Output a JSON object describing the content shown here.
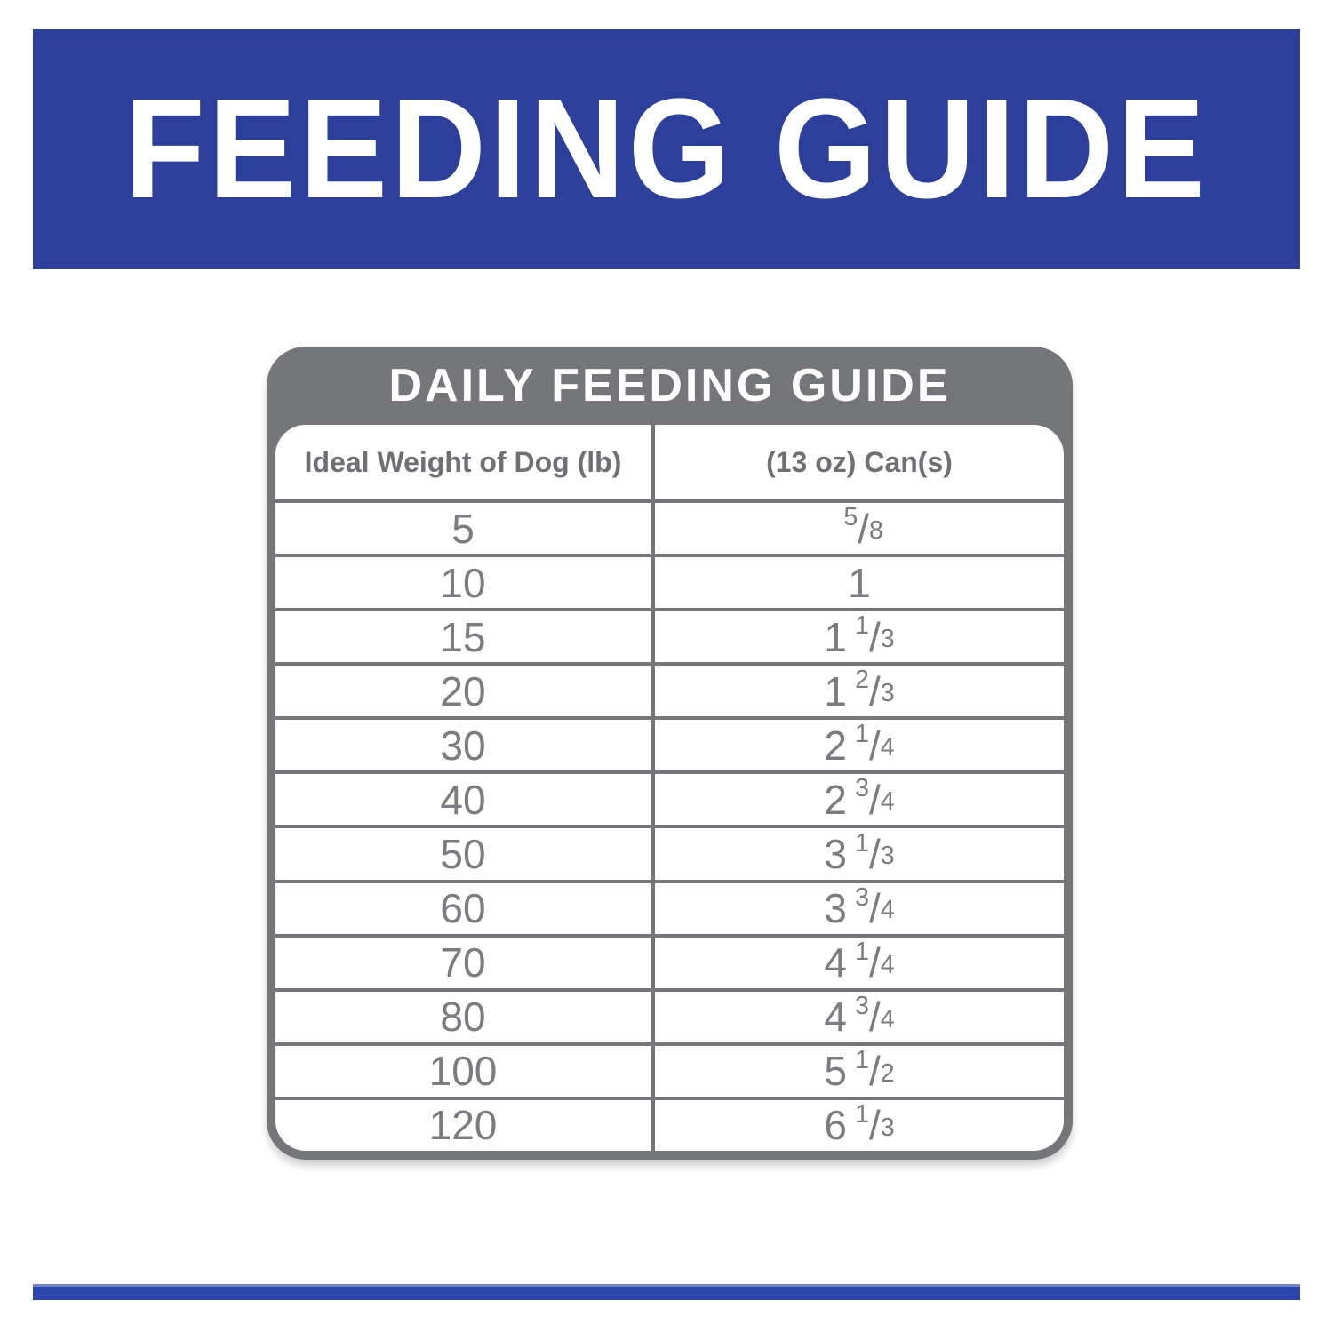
{
  "banner": {
    "title": "FEEDING GUIDE"
  },
  "table": {
    "title": "DAILY FEEDING GUIDE",
    "columns": {
      "weight": "Ideal Weight of Dog (lb)",
      "cans": "(13 oz) Can(s)"
    },
    "rows": [
      {
        "weight": "5",
        "cans": {
          "whole": "",
          "num": "5",
          "slash": "/",
          "den": "8"
        }
      },
      {
        "weight": "10",
        "cans": {
          "whole": "1",
          "num": "",
          "slash": "",
          "den": ""
        }
      },
      {
        "weight": "15",
        "cans": {
          "whole": "1",
          "num": "1",
          "slash": "/",
          "den": "3"
        }
      },
      {
        "weight": "20",
        "cans": {
          "whole": "1",
          "num": "2",
          "slash": "/",
          "den": "3"
        }
      },
      {
        "weight": "30",
        "cans": {
          "whole": "2",
          "num": "1",
          "slash": "/",
          "den": "4"
        }
      },
      {
        "weight": "40",
        "cans": {
          "whole": "2",
          "num": "3",
          "slash": "/",
          "den": "4"
        }
      },
      {
        "weight": "50",
        "cans": {
          "whole": "3",
          "num": "1",
          "slash": "/",
          "den": "3"
        }
      },
      {
        "weight": "60",
        "cans": {
          "whole": "3",
          "num": "3",
          "slash": "/",
          "den": "4"
        }
      },
      {
        "weight": "70",
        "cans": {
          "whole": "4",
          "num": "1",
          "slash": "/",
          "den": "4"
        }
      },
      {
        "weight": "80",
        "cans": {
          "whole": "4",
          "num": "3",
          "slash": "/",
          "den": "4"
        }
      },
      {
        "weight": "100",
        "cans": {
          "whole": "5",
          "num": "1",
          "slash": "/",
          "den": "2"
        }
      },
      {
        "weight": "120",
        "cans": {
          "whole": "6",
          "num": "1",
          "slash": "/",
          "den": "3"
        }
      }
    ]
  },
  "colors": {
    "banner_blue": "#2B3F9B",
    "footer_blue": "#2A46AE",
    "table_gray": "#75767A",
    "text_gray": "#7B7C7F",
    "title_text": "#FFFFFF"
  }
}
